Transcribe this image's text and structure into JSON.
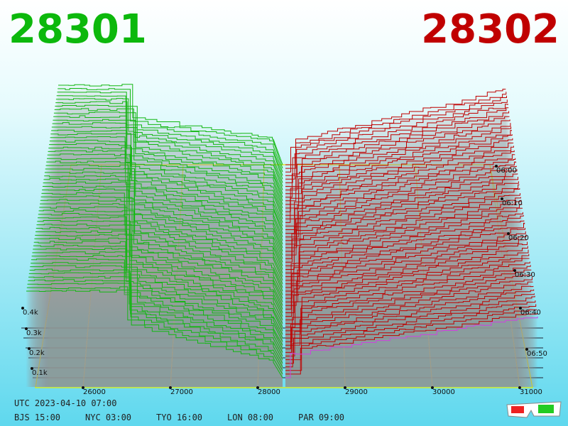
{
  "header": {
    "bid": "28301",
    "ask": "28302"
  },
  "price_axis": [
    "26000",
    "27000",
    "28000",
    "29000",
    "30000",
    "31000"
  ],
  "depth_axis": [
    "0.4k",
    "0.3k",
    "0.2k",
    "0.1k"
  ],
  "time_axis": [
    "06:00",
    "06:10",
    "06:20",
    "06:30",
    "06:40",
    "06:50"
  ],
  "footer": {
    "utc": "UTC 2023-04-10 07:00",
    "cities": [
      "BJS 15:00",
      "NYC 03:00",
      "TYO 16:00",
      "LON 08:00",
      "PAR 09:00"
    ]
  }
}
